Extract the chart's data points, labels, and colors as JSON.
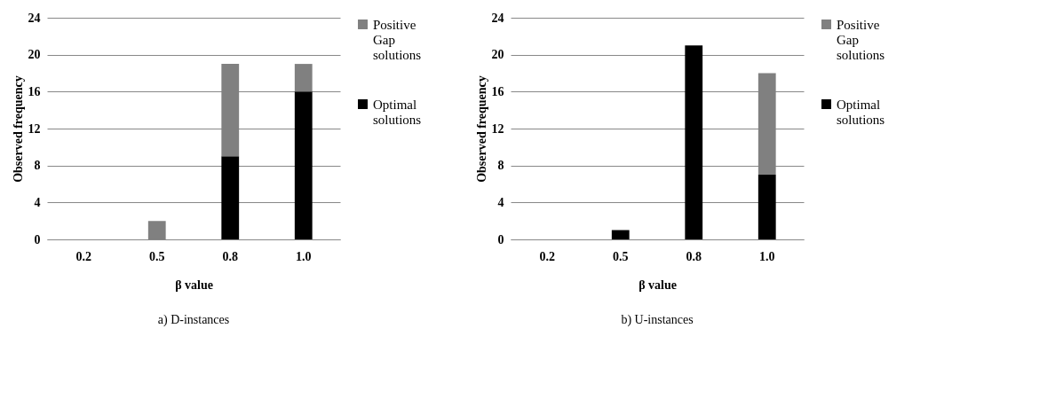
{
  "chart_data": [
    {
      "type": "bar",
      "stacked": true,
      "categories": [
        "0.2",
        "0.5",
        "0.8",
        "1.0"
      ],
      "xlabel": "β value",
      "ylabel": "Observed frequency",
      "ylim": [
        0,
        24
      ],
      "yticks": [
        0,
        4,
        8,
        12,
        16,
        20,
        24
      ],
      "grid": "y",
      "legend": "right",
      "annotations": [
        "a) D-instances"
      ],
      "series": [
        {
          "name": "Optimal solutions",
          "color": "#000000",
          "values": [
            0,
            0,
            9,
            16
          ]
        },
        {
          "name": "Positive Gap solutions",
          "color": "#808080",
          "values": [
            0,
            2,
            10,
            3
          ]
        }
      ]
    },
    {
      "type": "bar",
      "stacked": true,
      "categories": [
        "0.2",
        "0.5",
        "0.8",
        "1.0"
      ],
      "xlabel": "β value",
      "ylabel": "Observed frequency",
      "ylim": [
        0,
        24
      ],
      "yticks": [
        0,
        4,
        8,
        12,
        16,
        20,
        24
      ],
      "grid": "y",
      "legend": "right",
      "annotations": [
        "b) U-instances"
      ],
      "series": [
        {
          "name": "Optimal solutions",
          "color": "#000000",
          "values": [
            0,
            1,
            21,
            7
          ]
        },
        {
          "name": "Positive Gap solutions",
          "color": "#808080",
          "values": [
            0,
            0,
            0,
            11
          ]
        }
      ]
    }
  ]
}
